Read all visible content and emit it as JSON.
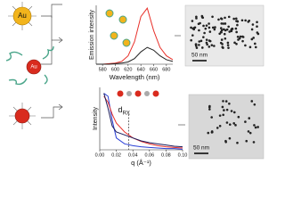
{
  "chart_data": [
    {
      "type": "line",
      "xlabel": "Wavelength (nm)",
      "ylabel": "Emission intensity",
      "x": [
        570,
        580,
        590,
        600,
        610,
        620,
        630,
        640,
        650,
        660,
        670,
        680,
        690
      ],
      "xlim": [
        570,
        690
      ],
      "xticks": [
        580,
        600,
        620,
        640,
        660,
        680
      ],
      "ylim": [
        0,
        1.05
      ],
      "series": [
        {
          "color": "#e8302a",
          "values": [
            0,
            0,
            0.01,
            0.02,
            0.05,
            0.15,
            0.4,
            0.85,
            1.0,
            0.6,
            0.3,
            0.15,
            0.08
          ]
        },
        {
          "color": "#222222",
          "values": [
            0,
            0,
            0,
            0.01,
            0.02,
            0.04,
            0.1,
            0.22,
            0.3,
            0.25,
            0.15,
            0.08,
            0.05
          ]
        }
      ]
    },
    {
      "type": "line",
      "xlabel": "q (Å⁻¹)",
      "ylabel": "Intensity",
      "x": [
        0.005,
        0.01,
        0.015,
        0.02,
        0.03,
        0.04,
        0.05,
        0.06,
        0.07,
        0.08,
        0.09,
        0.1
      ],
      "xlim": [
        0,
        0.1
      ],
      "xticks": [
        {
          "value": 0,
          "label": "0.00"
        },
        {
          "value": 0.02,
          "label": "0.02"
        },
        {
          "value": 0.04,
          "label": "0.04"
        },
        {
          "value": 0.06,
          "label": "0.06"
        },
        {
          "value": 0.08,
          "label": "0.08"
        },
        {
          "value": 0.1,
          "label": "0.10"
        }
      ],
      "ylim": [
        0,
        1.05
      ],
      "vline": {
        "x": 0.035,
        "label": "d",
        "label_sub": "RX"
      },
      "series": [
        {
          "color": "#2a3fd6",
          "values": [
            0.95,
            0.9,
            0.5,
            0.2,
            0.1,
            0.07,
            0.05,
            0.04,
            0.03,
            0.02,
            0.02,
            0.01
          ]
        },
        {
          "color": "#e8302a",
          "values": [
            0.9,
            0.8,
            0.6,
            0.45,
            0.3,
            0.2,
            0.14,
            0.1,
            0.07,
            0.05,
            0.04,
            0.03
          ]
        },
        {
          "color": "#1a1a5a",
          "values": [
            0.95,
            0.7,
            0.4,
            0.3,
            0.25,
            0.2,
            0.15,
            0.12,
            0.1,
            0.08,
            0.06,
            0.05
          ]
        }
      ]
    }
  ],
  "figure": {
    "particles": [
      "Au",
      "Au"
    ],
    "scale_bars": [
      "50 nm",
      "50 nm"
    ]
  }
}
